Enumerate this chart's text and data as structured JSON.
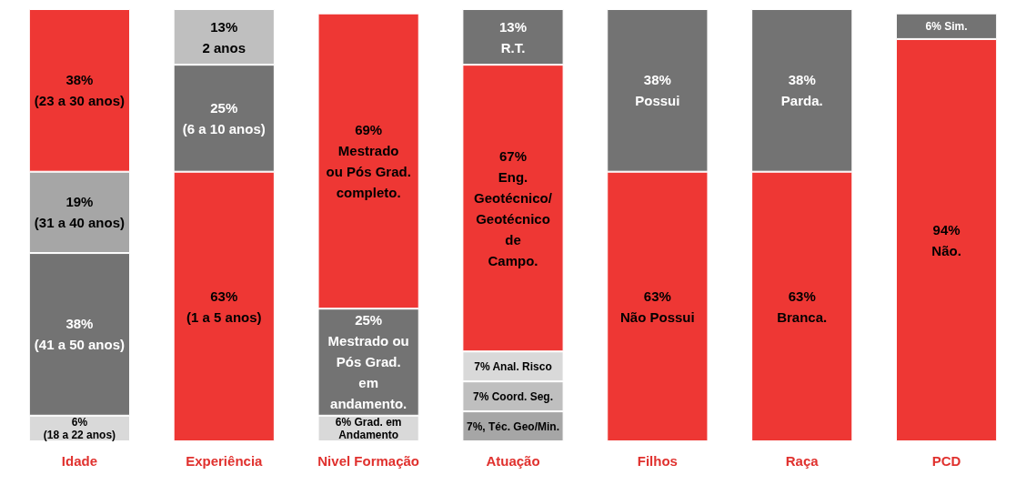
{
  "chart_data": {
    "type": "bar",
    "stacked": true,
    "categories": [
      "Idade",
      "Experiência",
      "Nivel Formação",
      "Atuação",
      "Filhos",
      "Raça",
      "PCD"
    ],
    "series": [
      {
        "values": [
          6,
          63,
          6,
          7,
          63,
          63,
          94
        ],
        "colors": [
          "#d9d9d9",
          "#ee3734",
          "#d9d9d9",
          "#a6a6a6",
          "#ee3734",
          "#ee3734",
          "#ee3734"
        ],
        "value_labels": [
          "6%\n(18 a 22 anos)",
          "63%\n(1 a 5 anos)",
          "6% Grad. em\nAndamento",
          "7%, Téc. Geo/Min.",
          "63%\nNão Possui",
          "63%\nBranca.",
          "94%\nNão."
        ]
      },
      {
        "values": [
          38,
          25,
          25,
          7,
          38,
          38,
          6
        ],
        "colors": [
          "#737373",
          "#737373",
          "#737373",
          "#bfbfbf",
          "#737373",
          "#737373",
          "#737373"
        ],
        "value_labels": [
          "38%\n(41 a 50 anos)",
          "25%\n(6 a 10 anos)",
          "25%\nMestrado ou\nPós Grad.\nem\nandamento.",
          "7% Coord. Seg.",
          "38%\nPossui",
          "38%\nParda.",
          "6% Sim."
        ]
      },
      {
        "values": [
          19,
          13,
          69,
          7,
          null,
          null,
          null
        ],
        "colors": [
          "#a6a6a6",
          "#bfbfbf",
          "#ee3734",
          "#d9d9d9",
          null,
          null,
          null
        ],
        "value_labels": [
          "19%\n(31 a 40 anos)",
          "13%\n2 anos",
          "69%\nMestrado\nou Pós Grad.\ncompleto.",
          "7% Anal. Risco",
          null,
          null,
          null
        ]
      },
      {
        "values": [
          38,
          null,
          null,
          67,
          null,
          null,
          null
        ],
        "colors": [
          "#ee3734",
          null,
          null,
          "#ee3734",
          null,
          null,
          null
        ],
        "value_labels": [
          "38%\n(23 a 30 anos)",
          null,
          null,
          "67%\nEng.\nGeotécnico/\nGeotécnico\nde\nCampo.",
          null,
          null,
          null
        ]
      },
      {
        "values": [
          null,
          null,
          null,
          13,
          null,
          null,
          null
        ],
        "colors": [
          null,
          null,
          null,
          "#737373",
          null,
          null,
          null
        ],
        "value_labels": [
          null,
          null,
          null,
          "13%\nR.T.",
          null,
          null,
          null
        ]
      }
    ]
  }
}
